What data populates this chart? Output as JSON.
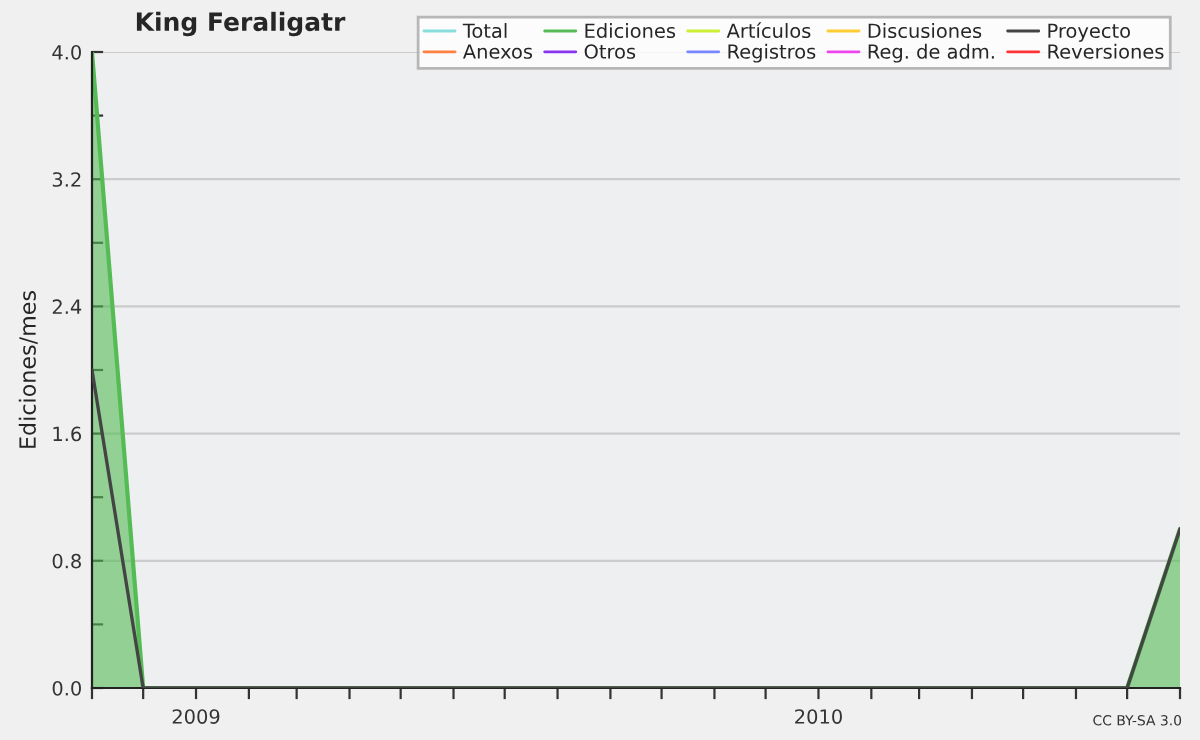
{
  "chart_data": {
    "type": "line",
    "title": "King Feraligatr",
    "ylabel": "Ediciones/mes",
    "x": [
      "2008-11",
      "2008-12",
      "2009-01",
      "2009-02",
      "2009-03",
      "2009-04",
      "2009-05",
      "2009-06",
      "2009-07",
      "2009-08",
      "2009-09",
      "2009-10",
      "2009-11",
      "2009-12",
      "2010-01",
      "2010-02",
      "2010-03",
      "2010-04",
      "2010-05",
      "2010-06",
      "2010-07",
      "2010-08"
    ],
    "series": [
      {
        "name": "Total",
        "color": "#88dddd",
        "values": [
          null,
          null,
          null,
          null,
          null,
          null,
          null,
          null,
          null,
          null,
          null,
          null,
          null,
          null,
          null,
          null,
          null,
          null,
          null,
          null,
          null,
          null
        ]
      },
      {
        "name": "Ediciones",
        "color": "#55bb55",
        "type": "area",
        "values": [
          4,
          0,
          0,
          0,
          0,
          0,
          0,
          0,
          0,
          0,
          0,
          0,
          0,
          0,
          0,
          0,
          0,
          0,
          0,
          0,
          0,
          1
        ]
      },
      {
        "name": "Artículos",
        "color": "#ccee33",
        "values": [
          null,
          null,
          null,
          null,
          null,
          null,
          null,
          null,
          null,
          null,
          null,
          null,
          null,
          null,
          null,
          null,
          null,
          null,
          null,
          null,
          null,
          null
        ]
      },
      {
        "name": "Discusiones",
        "color": "#ffcc33",
        "values": [
          null,
          null,
          null,
          null,
          null,
          null,
          null,
          null,
          null,
          null,
          null,
          null,
          null,
          null,
          null,
          null,
          null,
          null,
          null,
          null,
          null,
          null
        ]
      },
      {
        "name": "Proyecto",
        "color": "#444444",
        "values": [
          2,
          0,
          0,
          0,
          0,
          0,
          0,
          0,
          0,
          0,
          0,
          0,
          0,
          0,
          0,
          0,
          0,
          0,
          0,
          0,
          0,
          1
        ]
      },
      {
        "name": "Anexos",
        "color": "#ff8040",
        "values": [
          null,
          null,
          null,
          null,
          null,
          null,
          null,
          null,
          null,
          null,
          null,
          null,
          null,
          null,
          null,
          null,
          null,
          null,
          null,
          null,
          null,
          null
        ]
      },
      {
        "name": "Otros",
        "color": "#8833ee",
        "values": [
          null,
          null,
          null,
          null,
          null,
          null,
          null,
          null,
          null,
          null,
          null,
          null,
          null,
          null,
          null,
          null,
          null,
          null,
          null,
          null,
          null,
          null
        ]
      },
      {
        "name": "Registros",
        "color": "#7788ff",
        "values": [
          null,
          null,
          null,
          null,
          null,
          null,
          null,
          null,
          null,
          null,
          null,
          null,
          null,
          null,
          null,
          null,
          null,
          null,
          null,
          null,
          null,
          null
        ]
      },
      {
        "name": "Reg. de adm.",
        "color": "#ee44ee",
        "values": [
          null,
          null,
          null,
          null,
          null,
          null,
          null,
          null,
          null,
          null,
          null,
          null,
          null,
          null,
          null,
          null,
          null,
          null,
          null,
          null,
          null,
          null
        ]
      },
      {
        "name": "Reversiones",
        "color": "#ff3333",
        "values": [
          null,
          null,
          null,
          null,
          null,
          null,
          null,
          null,
          null,
          null,
          null,
          null,
          null,
          null,
          null,
          null,
          null,
          null,
          null,
          null,
          null,
          null
        ]
      }
    ],
    "xlim": [
      "2008-11",
      "2010-08"
    ],
    "xticks": [
      {
        "value": "2008-11",
        "label": null
      },
      {
        "value": "2008-12",
        "label": null
      },
      {
        "value": "2009-01",
        "label": "2009"
      },
      {
        "value": "2009-02",
        "label": null
      },
      {
        "value": "2009-03",
        "label": null
      },
      {
        "value": "2009-04",
        "label": null
      },
      {
        "value": "2009-05",
        "label": null
      },
      {
        "value": "2009-06",
        "label": null
      },
      {
        "value": "2009-07",
        "label": null
      },
      {
        "value": "2009-08",
        "label": null
      },
      {
        "value": "2009-09",
        "label": null
      },
      {
        "value": "2009-10",
        "label": null
      },
      {
        "value": "2009-11",
        "label": null
      },
      {
        "value": "2009-12",
        "label": null
      },
      {
        "value": "2010-01",
        "label": "2010"
      },
      {
        "value": "2010-02",
        "label": null
      },
      {
        "value": "2010-03",
        "label": null
      },
      {
        "value": "2010-04",
        "label": null
      },
      {
        "value": "2010-05",
        "label": null
      },
      {
        "value": "2010-06",
        "label": null
      },
      {
        "value": "2010-07",
        "label": null
      },
      {
        "value": "2010-08",
        "label": null
      }
    ],
    "ylim": [
      0,
      4
    ],
    "yticks": [
      {
        "value": 0,
        "label": "0.0"
      },
      {
        "value": 0.4,
        "label": null
      },
      {
        "value": 0.8,
        "label": "0.8"
      },
      {
        "value": 1.2,
        "label": null
      },
      {
        "value": 1.6,
        "label": "1.6"
      },
      {
        "value": 2.0,
        "label": null
      },
      {
        "value": 2.4,
        "label": "2.4"
      },
      {
        "value": 2.8,
        "label": null
      },
      {
        "value": 3.2,
        "label": "3.2"
      },
      {
        "value": 3.6,
        "label": null
      },
      {
        "value": 4.0,
        "label": "4.0"
      }
    ],
    "grid": "y",
    "legend": "top right",
    "marker": "none",
    "line_style": "solid",
    "annotations": [
      "CC BY-SA 3.0"
    ]
  }
}
